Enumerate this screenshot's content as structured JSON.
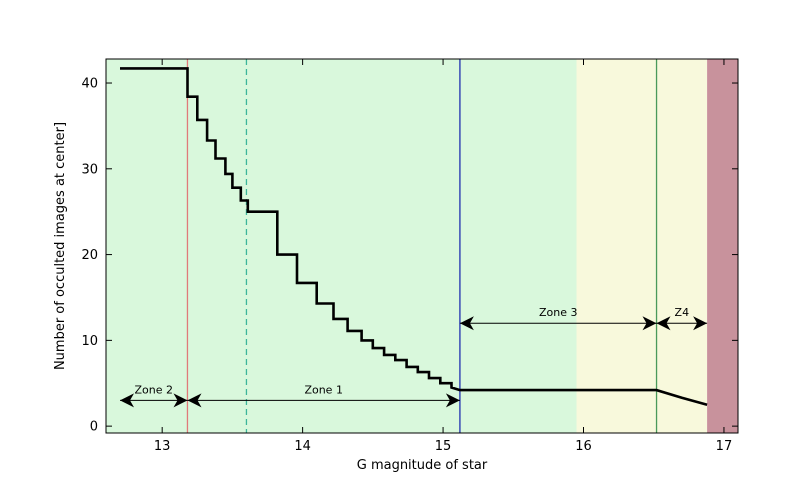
{
  "chart_data": {
    "type": "line",
    "title": "",
    "xlabel": "G magnitude of star",
    "ylabel": "Number of occulted images at center]",
    "xlim": [
      12.6,
      17.1
    ],
    "ylim": [
      -0.8,
      42.8
    ],
    "xticks": [
      13,
      14,
      15,
      16,
      17
    ],
    "yticks": [
      0,
      10,
      20,
      30,
      40
    ],
    "grid": false,
    "legend": "none",
    "bands": [
      {
        "x0": 12.6,
        "x1": 15.95,
        "color": "#d9f8dc"
      },
      {
        "x0": 15.95,
        "x1": 16.88,
        "color": "#f8f9dc"
      },
      {
        "x0": 16.88,
        "x1": 17.1,
        "color": "#c8929c"
      }
    ],
    "vlines": [
      {
        "x": 13.18,
        "color": "#e07a7a",
        "style": "solid"
      },
      {
        "x": 13.6,
        "color": "#3cb59a",
        "style": "dashed"
      },
      {
        "x": 15.12,
        "color": "#2030b0",
        "style": "solid"
      },
      {
        "x": 16.52,
        "color": "#4a9a5a",
        "style": "solid"
      }
    ],
    "series": [
      {
        "color": "#000000",
        "step": true,
        "x": [
          12.7,
          13.18,
          13.18,
          13.25,
          13.25,
          13.32,
          13.32,
          13.38,
          13.38,
          13.45,
          13.45,
          13.5,
          13.5,
          13.56,
          13.56,
          13.61,
          13.61,
          13.65,
          13.65,
          13.82,
          13.82,
          13.96,
          13.96,
          14.1,
          14.1,
          14.22,
          14.22,
          14.32,
          14.32,
          14.42,
          14.42,
          14.5,
          14.5,
          14.58,
          14.58,
          14.66,
          14.66,
          14.74,
          14.74,
          14.82,
          14.82,
          14.9,
          14.9,
          14.98,
          14.98,
          15.06,
          15.06,
          15.12,
          16.52,
          16.7,
          16.88
        ],
        "y": [
          41.7,
          41.7,
          38.4,
          38.4,
          35.7,
          35.7,
          33.3,
          33.3,
          31.2,
          31.2,
          29.4,
          29.4,
          27.8,
          27.8,
          26.3,
          26.3,
          25.0,
          25.0,
          25.0,
          25.0,
          20.0,
          20.0,
          16.7,
          16.7,
          14.3,
          14.3,
          12.5,
          12.5,
          11.1,
          11.1,
          10.0,
          10.0,
          9.1,
          9.1,
          8.3,
          8.3,
          7.7,
          7.7,
          6.9,
          6.9,
          6.3,
          6.3,
          5.6,
          5.6,
          5.0,
          5.0,
          4.5,
          4.2,
          4.2,
          3.3,
          2.5
        ]
      }
    ],
    "zones": [
      {
        "label": "Zone 2",
        "x0": 12.7,
        "x1": 13.18,
        "y": 3.0
      },
      {
        "label": "Zone 1",
        "x0": 13.18,
        "x1": 15.12,
        "y": 3.0
      },
      {
        "label": "Zone 3",
        "x0": 15.12,
        "x1": 16.52,
        "y": 12.0
      },
      {
        "label": "Z4",
        "x0": 16.52,
        "x1": 16.88,
        "y": 12.0
      }
    ]
  }
}
